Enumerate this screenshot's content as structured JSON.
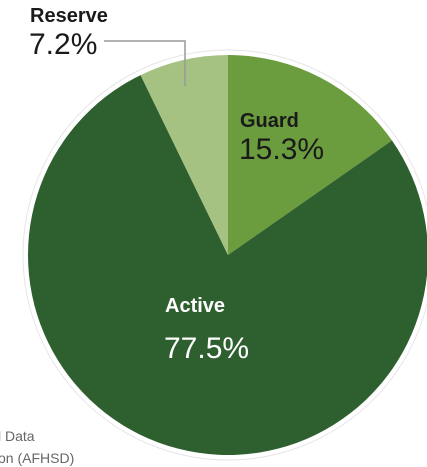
{
  "chart_data": {
    "type": "pie",
    "categories": [
      "Guard",
      "Active",
      "Reserve"
    ],
    "values": [
      15.3,
      77.5,
      7.2
    ],
    "value_labels": [
      "15.3%",
      "77.5%",
      "7.2%"
    ],
    "colors": [
      "#6b9c3d",
      "#2e5f2f",
      "#a6c283"
    ],
    "source_lines": [
      "l Data",
      "on (AFHSD)"
    ]
  }
}
